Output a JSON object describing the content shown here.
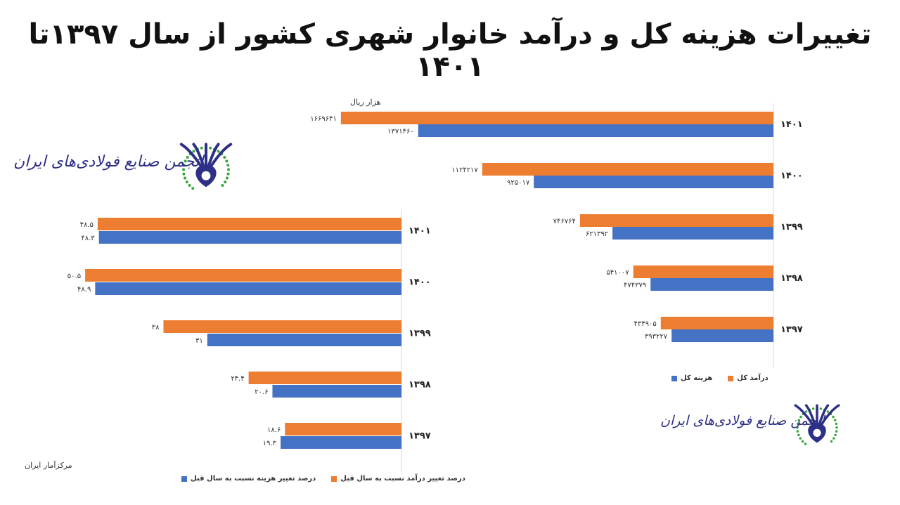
{
  "page": {
    "title": "تغییرات هزینه کل و درآمد خانوار شهری کشور از سال ۱۳۹۷تا ۱۴۰۱",
    "unit_label": "هزار ریال",
    "source": "مرکزآمار ایران"
  },
  "logo": {
    "text": "انجمن صنایع فولادی‌های ایران",
    "colors": {
      "emblem": "#2e2f86",
      "dots": "#3aa63a"
    }
  },
  "colors": {
    "orange": "#ed7d31",
    "blue": "#4472c4"
  },
  "chart_data": [
    {
      "type": "bar",
      "orientation": "horizontal",
      "title": "",
      "unit": "هزار ریال",
      "categories": [
        "۱۴۰۱",
        "۱۴۰۰",
        "۱۳۹۹",
        "۱۳۹۸",
        "۱۳۹۷"
      ],
      "series": [
        {
          "name": "درآمد کل",
          "color": "#ed7d31",
          "values": [
            1669641,
            1124217,
            746764,
            541007,
            434905
          ],
          "labels": [
            "۱۶۶۹۶۴۱",
            "۱۱۲۴۲۱۷",
            "۷۴۶۷۶۴",
            "۵۴۱۰۰۷",
            "۴۳۴۹۰۵"
          ]
        },
        {
          "name": "هزینه کل",
          "color": "#4472c4",
          "values": [
            1371460,
            925017,
            621392,
            474379,
            393227
          ],
          "labels": [
            "۱۳۷۱۴۶۰",
            "۹۲۵۰۱۷",
            "۶۲۱۳۹۲",
            "۴۷۴۳۷۹",
            "۳۹۳۲۲۷"
          ]
        }
      ],
      "xlim": [
        0,
        1900000
      ],
      "legend_position": "bottom-right",
      "grid": false
    },
    {
      "type": "bar",
      "orientation": "horizontal",
      "title": "",
      "categories": [
        "۱۴۰۱",
        "۱۴۰۰",
        "۱۳۹۹",
        "۱۳۹۸",
        "۱۳۹۷"
      ],
      "series": [
        {
          "name": "درصد تغییر  درآمد نسبت به سال قبل",
          "color": "#ed7d31",
          "values": [
            48.5,
            50.5,
            38,
            24.4,
            18.6
          ],
          "labels": [
            "۴۸.۵",
            "۵۰.۵",
            "۳۸",
            "۲۴.۴",
            "۱۸.۶"
          ]
        },
        {
          "name": "درصد تغییر  هزینه نسبت به سال قبل",
          "color": "#4472c4",
          "values": [
            48.3,
            48.9,
            31,
            20.6,
            19.3
          ],
          "labels": [
            "۴۸.۳",
            "۴۸.۹",
            "۳۱",
            "۲۰.۶",
            "۱۹.۳"
          ]
        }
      ],
      "xlim": [
        0,
        55
      ],
      "legend_position": "bottom",
      "grid": false
    }
  ]
}
